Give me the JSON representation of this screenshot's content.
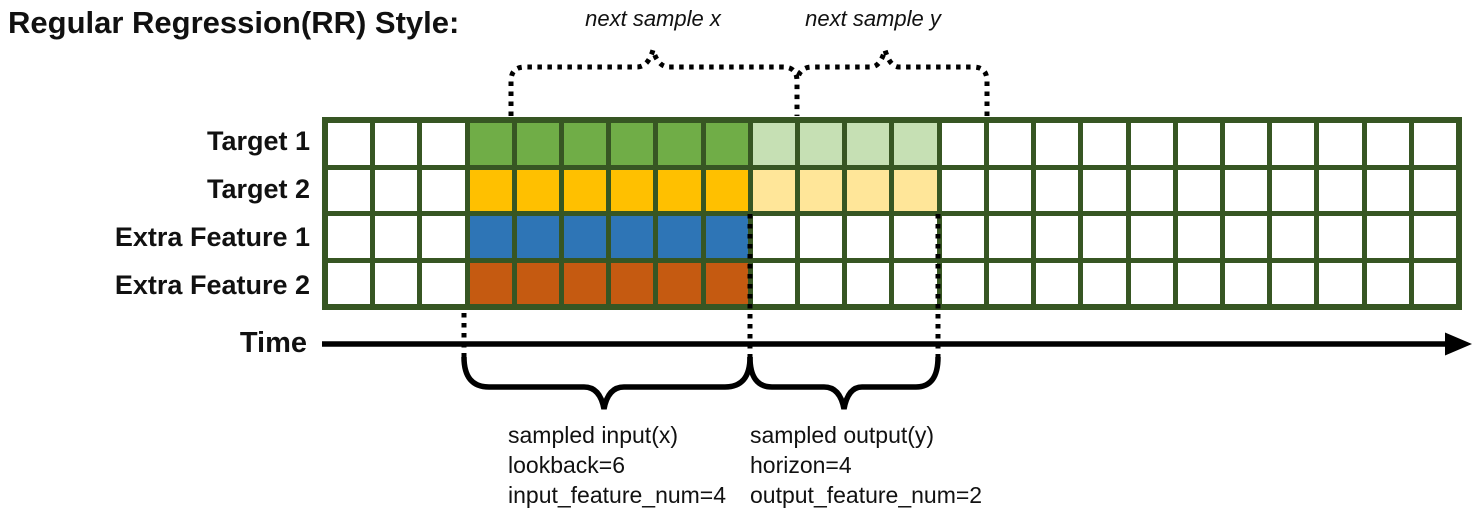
{
  "title": "Regular Regression(RR) Style:",
  "colors": {
    "grid_border": "#375623",
    "target1_input": "#70AD47",
    "target1_output": "#C6E0B4",
    "target2_input": "#FFC000",
    "target2_output": "#FFE699",
    "extra1_input": "#2E75B6",
    "extra2_input": "#C55A11",
    "annotation": "#000000"
  },
  "grid": {
    "columns": 24,
    "input_start": 3,
    "lookback": 6,
    "horizon": 4,
    "rows": [
      {
        "label": "Target 1",
        "fill": "#70AD47",
        "forecast_fill": "#C6E0B4",
        "has_forecast": true
      },
      {
        "label": "Target 2",
        "fill": "#FFC000",
        "forecast_fill": "#FFE699",
        "has_forecast": true
      },
      {
        "label": "Extra Feature 1",
        "fill": "#2E75B6",
        "forecast_fill": "",
        "has_forecast": false
      },
      {
        "label": "Extra Feature 2",
        "fill": "#C55A11",
        "forecast_fill": "",
        "has_forecast": false
      }
    ]
  },
  "annotations": {
    "next_sample_x": "next sample x",
    "next_sample_y": "next sample y",
    "time_label": "Time",
    "input_block": [
      "sampled input(x)",
      "lookback=6",
      "input_feature_num=4"
    ],
    "output_block": [
      "sampled output(y)",
      "horizon=4",
      "output_feature_num=2"
    ]
  }
}
